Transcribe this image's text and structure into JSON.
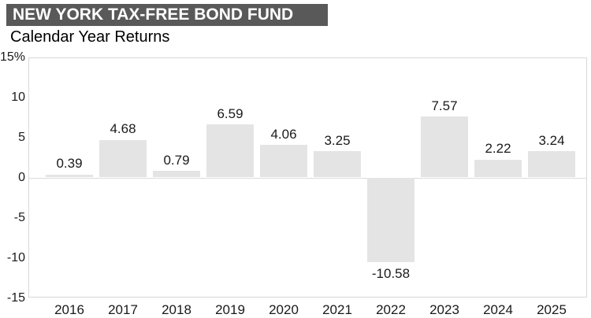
{
  "header": {
    "title": "NEW YORK TAX-FREE BOND FUND",
    "title_bg": "#595959",
    "title_color": "#ffffff"
  },
  "subtitle": "Calendar Year Returns",
  "chart_data": {
    "type": "bar",
    "title": "NEW YORK TAX-FREE BOND FUND",
    "subtitle": "Calendar Year Returns",
    "categories": [
      "2016",
      "2017",
      "2018",
      "2019",
      "2020",
      "2021",
      "2022",
      "2023",
      "2024",
      "2025"
    ],
    "values": [
      0.39,
      4.68,
      0.79,
      6.59,
      4.06,
      3.25,
      -10.58,
      7.57,
      2.22,
      3.24
    ],
    "value_labels": [
      "0.39",
      "4.68",
      "0.79",
      "6.59",
      "4.06",
      "3.25",
      "-10.58",
      "7.57",
      "2.22",
      "3.24"
    ],
    "xlabel": "",
    "ylabel": "",
    "ylim": [
      -15,
      15
    ],
    "yticks": [
      15,
      10,
      5,
      0,
      -5,
      -10,
      -15
    ],
    "ytick_labels": [
      "15%",
      "10",
      "5",
      "0",
      "-5",
      "-10",
      "-15"
    ],
    "bar_color": "#e4e4e4",
    "grid": false,
    "legend": false,
    "zero_line": true
  }
}
